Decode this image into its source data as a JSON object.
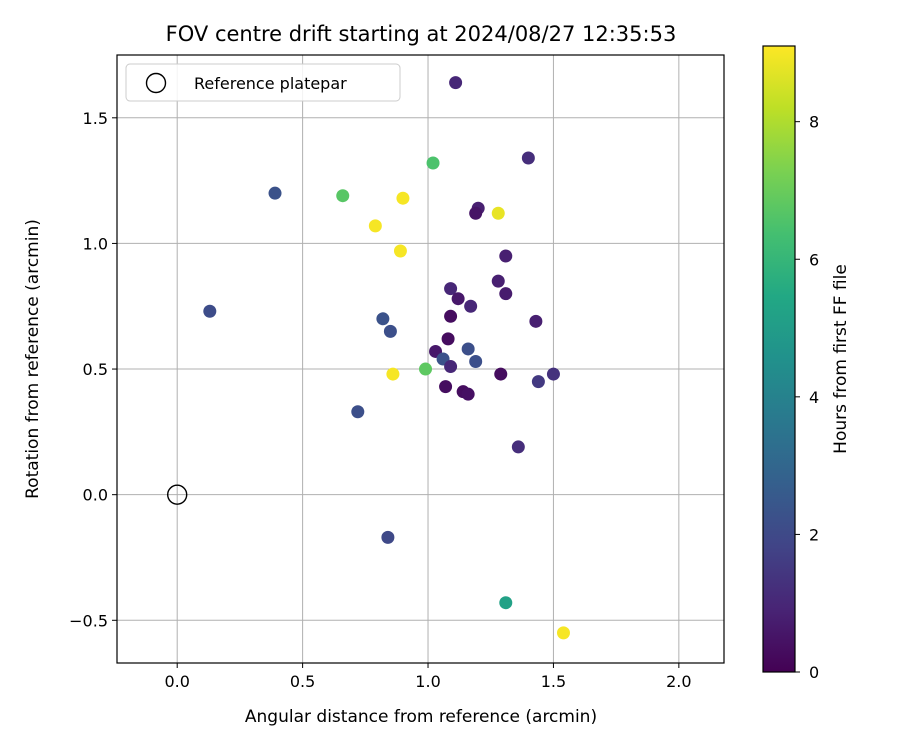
{
  "chart_data": {
    "type": "scatter",
    "title": "FOV centre drift starting at 2024/08/27 12:35:53",
    "xlabel": "Angular distance from reference (arcmin)",
    "ylabel": "Rotation from reference (arcmin)",
    "xlim": [
      -0.24,
      2.18
    ],
    "ylim": [
      -0.67,
      1.75
    ],
    "xticks": [
      0.0,
      0.5,
      1.0,
      1.5,
      2.0
    ],
    "xtick_labels": [
      "0.0",
      "0.5",
      "1.0",
      "1.5",
      "2.0"
    ],
    "yticks": [
      -0.5,
      0.0,
      0.5,
      1.0,
      1.5
    ],
    "ytick_labels": [
      "−0.5",
      "0.0",
      "0.5",
      "1.0",
      "1.5"
    ],
    "grid": true,
    "legend": {
      "position": "top-left",
      "entries": [
        "Reference platepar"
      ]
    },
    "reference_point": {
      "x": 0.0,
      "y": 0.0,
      "label": "Reference platepar"
    },
    "colorbar": {
      "label": "Hours from first FF file",
      "colormap": "viridis",
      "range": [
        0,
        9.1
      ],
      "ticks": [
        0,
        2,
        4,
        6,
        8
      ],
      "tick_labels": [
        "0",
        "2",
        "4",
        "6",
        "8"
      ]
    },
    "points": [
      {
        "x": 1.11,
        "y": 1.64,
        "hours": 1.0
      },
      {
        "x": 1.4,
        "y": 1.34,
        "hours": 1.2
      },
      {
        "x": 1.02,
        "y": 1.32,
        "hours": 6.5
      },
      {
        "x": 0.39,
        "y": 1.2,
        "hours": 2.3
      },
      {
        "x": 0.66,
        "y": 1.19,
        "hours": 6.7
      },
      {
        "x": 0.9,
        "y": 1.18,
        "hours": 9.0
      },
      {
        "x": 1.2,
        "y": 1.14,
        "hours": 0.8
      },
      {
        "x": 1.19,
        "y": 1.12,
        "hours": 0.5
      },
      {
        "x": 1.28,
        "y": 1.12,
        "hours": 8.8
      },
      {
        "x": 0.79,
        "y": 1.07,
        "hours": 9.0
      },
      {
        "x": 0.89,
        "y": 0.97,
        "hours": 9.0
      },
      {
        "x": 1.31,
        "y": 0.95,
        "hours": 0.8
      },
      {
        "x": 1.28,
        "y": 0.85,
        "hours": 0.8
      },
      {
        "x": 1.09,
        "y": 0.82,
        "hours": 1.0
      },
      {
        "x": 1.31,
        "y": 0.8,
        "hours": 0.7
      },
      {
        "x": 1.12,
        "y": 0.78,
        "hours": 0.6
      },
      {
        "x": 1.17,
        "y": 0.75,
        "hours": 1.0
      },
      {
        "x": 0.13,
        "y": 0.73,
        "hours": 2.1
      },
      {
        "x": 1.09,
        "y": 0.71,
        "hours": 0.3
      },
      {
        "x": 0.82,
        "y": 0.7,
        "hours": 2.3
      },
      {
        "x": 1.43,
        "y": 0.69,
        "hours": 0.8
      },
      {
        "x": 0.85,
        "y": 0.65,
        "hours": 2.2
      },
      {
        "x": 1.08,
        "y": 0.62,
        "hours": 0.3
      },
      {
        "x": 1.16,
        "y": 0.58,
        "hours": 2.2
      },
      {
        "x": 1.03,
        "y": 0.57,
        "hours": 0.6
      },
      {
        "x": 1.06,
        "y": 0.54,
        "hours": 2.3
      },
      {
        "x": 1.19,
        "y": 0.53,
        "hours": 2.2
      },
      {
        "x": 1.09,
        "y": 0.51,
        "hours": 1.0
      },
      {
        "x": 0.99,
        "y": 0.5,
        "hours": 6.8
      },
      {
        "x": 0.86,
        "y": 0.48,
        "hours": 9.0
      },
      {
        "x": 1.29,
        "y": 0.48,
        "hours": 0.3
      },
      {
        "x": 1.5,
        "y": 0.48,
        "hours": 1.3
      },
      {
        "x": 1.44,
        "y": 0.45,
        "hours": 1.5
      },
      {
        "x": 1.07,
        "y": 0.43,
        "hours": 0.3
      },
      {
        "x": 1.14,
        "y": 0.41,
        "hours": 0.3
      },
      {
        "x": 1.16,
        "y": 0.4,
        "hours": 0.4
      },
      {
        "x": 0.72,
        "y": 0.33,
        "hours": 2.2
      },
      {
        "x": 1.36,
        "y": 0.19,
        "hours": 1.2
      },
      {
        "x": 0.84,
        "y": -0.17,
        "hours": 2.0
      },
      {
        "x": 1.31,
        "y": -0.43,
        "hours": 5.2
      },
      {
        "x": 1.54,
        "y": -0.55,
        "hours": 9.0
      }
    ]
  }
}
